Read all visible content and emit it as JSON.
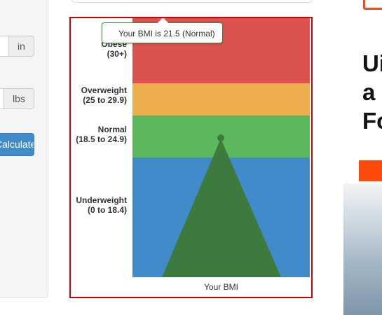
{
  "form": {
    "height_unit": "in",
    "weight_unit": "lbs",
    "calculate_label": "Calculate"
  },
  "chart": {
    "tooltip": "Your BMI is 21.5 (Normal)",
    "x_axis_label": "Your BMI",
    "bands": [
      {
        "name": "Obese",
        "range": "(30+)",
        "color": "#db524f"
      },
      {
        "name": "Overweight",
        "range": "(25 to 29.9)",
        "color": "#f0ad4e"
      },
      {
        "name": "Normal",
        "range": "(18.5 to 24.9)",
        "color": "#5cb85c"
      },
      {
        "name": "Underweight",
        "range": "(0 to 18.4)",
        "color": "#428bca"
      }
    ],
    "marker_color": "#3d7a3d"
  },
  "chart_data": {
    "type": "area",
    "bands": [
      {
        "label": "Obese (30+)",
        "from": 30,
        "to": 40
      },
      {
        "label": "Overweight (25 to 29.9)",
        "from": 25,
        "to": 29.9
      },
      {
        "label": "Normal (18.5 to 24.9)",
        "from": 18.5,
        "to": 24.9
      },
      {
        "label": "Underweight (0 to 18.4)",
        "from": 0,
        "to": 18.4
      }
    ],
    "value": 21.5,
    "value_category": "Normal",
    "xlabel": "Your BMI"
  },
  "ad": {
    "headline_lines": [
      "Ui",
      "a",
      "Fo"
    ],
    "accent": "#ff4a0e"
  }
}
